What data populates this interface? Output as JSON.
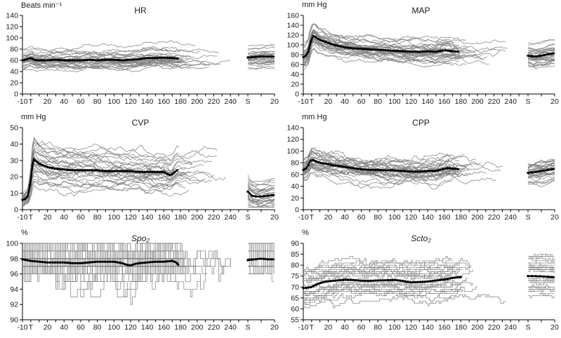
{
  "figure": {
    "background": "#ffffff",
    "colors": {
      "trace": "#7e7e7e",
      "mean": "#000000",
      "axis": "#000000",
      "text": "#1a1a1a"
    }
  },
  "chart_data": {
    "type": "line",
    "description": "Six-panel spaghetti plot of individual patient traces (grey) with bold mean line (black) over intraoperative time; axis break before recovery segment S",
    "x_axis": {
      "main_range": [
        -10,
        250
      ],
      "tick_step": 10,
      "main_labels": [
        [
          -10,
          "-10"
        ],
        [
          0,
          "T"
        ],
        [
          20,
          "20"
        ],
        [
          40,
          "40"
        ],
        [
          60,
          "60"
        ],
        [
          80,
          "80"
        ],
        [
          100,
          "100"
        ],
        [
          120,
          "120"
        ],
        [
          140,
          "140"
        ],
        [
          160,
          "160"
        ],
        [
          180,
          "180"
        ],
        [
          200,
          "200"
        ],
        [
          220,
          "220"
        ],
        [
          240,
          "240"
        ]
      ],
      "post_range": [
        0,
        20
      ],
      "post_ticks": [
        0,
        10,
        20
      ],
      "post_labels": [
        [
          0,
          "S"
        ],
        [
          20,
          "20"
        ]
      ]
    },
    "panels": [
      {
        "key": "hr",
        "title": "HR",
        "title_italic": false,
        "unit": "Beats min⁻¹",
        "ylim": [
          0,
          140
        ],
        "yticks": [
          0,
          20,
          40,
          60,
          80,
          100,
          120,
          140
        ],
        "n_traces": 32,
        "spread": 9,
        "walk": 1.2,
        "clamp": [
          36,
          112
        ],
        "quantize": false,
        "seed": 11,
        "mean": [
          [
            -10,
            60
          ],
          [
            -7,
            61
          ],
          [
            -4,
            62
          ],
          [
            0,
            64
          ],
          [
            3,
            62
          ],
          [
            6,
            60
          ],
          [
            10,
            60
          ],
          [
            20,
            60
          ],
          [
            30,
            61
          ],
          [
            40,
            60
          ],
          [
            50,
            60
          ],
          [
            60,
            60
          ],
          [
            70,
            61
          ],
          [
            80,
            60
          ],
          [
            90,
            61
          ],
          [
            100,
            61
          ],
          [
            110,
            60
          ],
          [
            120,
            61
          ],
          [
            130,
            62
          ],
          [
            140,
            64
          ],
          [
            150,
            64
          ],
          [
            160,
            65
          ],
          [
            170,
            64
          ],
          [
            178,
            63
          ]
        ],
        "post_mean": [
          [
            0,
            65
          ],
          [
            5,
            66
          ],
          [
            10,
            67
          ],
          [
            15,
            67
          ],
          [
            20,
            67
          ]
        ]
      },
      {
        "key": "map",
        "title": "MAP",
        "title_italic": false,
        "unit": "mm Hg",
        "ylim": [
          0,
          160
        ],
        "yticks": [
          0,
          20,
          40,
          60,
          80,
          100,
          120,
          140,
          160
        ],
        "n_traces": 32,
        "spread": 11,
        "walk": 1.8,
        "clamp": [
          48,
          148
        ],
        "quantize": false,
        "seed": 22,
        "mean": [
          [
            -10,
            75
          ],
          [
            -7,
            78
          ],
          [
            -4,
            86
          ],
          [
            -2,
            100
          ],
          [
            0,
            112
          ],
          [
            2,
            118
          ],
          [
            4,
            117
          ],
          [
            7,
            113
          ],
          [
            10,
            110
          ],
          [
            15,
            107
          ],
          [
            20,
            104
          ],
          [
            25,
            101
          ],
          [
            30,
            99
          ],
          [
            35,
            97
          ],
          [
            40,
            95
          ],
          [
            45,
            94
          ],
          [
            50,
            93
          ],
          [
            60,
            92
          ],
          [
            70,
            91
          ],
          [
            80,
            90
          ],
          [
            90,
            89
          ],
          [
            100,
            88
          ],
          [
            110,
            87
          ],
          [
            120,
            86
          ],
          [
            130,
            86
          ],
          [
            140,
            87
          ],
          [
            150,
            86
          ],
          [
            160,
            89
          ],
          [
            165,
            88
          ],
          [
            170,
            87
          ],
          [
            178,
            86
          ]
        ],
        "post_mean": [
          [
            0,
            78
          ],
          [
            5,
            76
          ],
          [
            10,
            78
          ],
          [
            15,
            81
          ],
          [
            20,
            83
          ]
        ]
      },
      {
        "key": "cvp",
        "title": "CVP",
        "title_italic": false,
        "unit": "mm Hg",
        "ylim": [
          0,
          50
        ],
        "yticks": [
          0,
          10,
          20,
          30,
          40,
          50
        ],
        "n_traces": 30,
        "spread": 5.5,
        "walk": 0.7,
        "clamp": [
          1.5,
          45
        ],
        "quantize": false,
        "offset_ref": 24,
        "seed": 33,
        "mean": [
          [
            -10,
            6
          ],
          [
            -7,
            6.5
          ],
          [
            -4,
            8
          ],
          [
            -2,
            12
          ],
          [
            0,
            18
          ],
          [
            2,
            27
          ],
          [
            3,
            31
          ],
          [
            5,
            30
          ],
          [
            8,
            29
          ],
          [
            10,
            28
          ],
          [
            15,
            27
          ],
          [
            20,
            26
          ],
          [
            30,
            25
          ],
          [
            40,
            24.5
          ],
          [
            50,
            24
          ],
          [
            60,
            24
          ],
          [
            70,
            24
          ],
          [
            80,
            24
          ],
          [
            90,
            23.5
          ],
          [
            100,
            23.5
          ],
          [
            110,
            23.5
          ],
          [
            120,
            23.5
          ],
          [
            130,
            23
          ],
          [
            140,
            23
          ],
          [
            150,
            23
          ],
          [
            160,
            23
          ],
          [
            165,
            21.5
          ],
          [
            168,
            21
          ],
          [
            172,
            22.5
          ],
          [
            176,
            24
          ]
        ],
        "post_mean": [
          [
            0,
            11
          ],
          [
            3,
            8.5
          ],
          [
            6,
            8
          ],
          [
            10,
            8
          ],
          [
            15,
            8.5
          ],
          [
            20,
            9
          ]
        ]
      },
      {
        "key": "cpp",
        "title": "CPP",
        "title_italic": false,
        "unit": "mm Hg",
        "ylim": [
          0,
          140
        ],
        "yticks": [
          0,
          20,
          40,
          60,
          80,
          100,
          120,
          140
        ],
        "n_traces": 32,
        "spread": 11,
        "walk": 1.9,
        "clamp": [
          28,
          126
        ],
        "quantize": false,
        "seed": 44,
        "mean": [
          [
            -10,
            68
          ],
          [
            -7,
            70
          ],
          [
            -4,
            76
          ],
          [
            -2,
            82
          ],
          [
            0,
            85
          ],
          [
            3,
            84
          ],
          [
            6,
            82
          ],
          [
            10,
            80
          ],
          [
            15,
            79
          ],
          [
            20,
            78
          ],
          [
            25,
            76
          ],
          [
            30,
            75
          ],
          [
            40,
            73
          ],
          [
            50,
            71
          ],
          [
            60,
            69
          ],
          [
            70,
            68
          ],
          [
            80,
            68
          ],
          [
            90,
            67
          ],
          [
            100,
            67
          ],
          [
            110,
            66
          ],
          [
            120,
            65
          ],
          [
            130,
            65
          ],
          [
            140,
            66
          ],
          [
            150,
            66
          ],
          [
            160,
            70
          ],
          [
            165,
            71
          ],
          [
            170,
            70
          ],
          [
            178,
            69
          ]
        ],
        "post_mean": [
          [
            0,
            63
          ],
          [
            5,
            64
          ],
          [
            10,
            66
          ],
          [
            15,
            68
          ],
          [
            20,
            70
          ]
        ]
      },
      {
        "key": "spo2",
        "title": "Spo₂",
        "title_italic": true,
        "unit": "%",
        "ylim": [
          90,
          100
        ],
        "yticks": [
          90,
          92,
          94,
          96,
          98,
          100
        ],
        "n_traces": 28,
        "spread": 1.6,
        "walk": 1,
        "clamp": [
          92,
          100
        ],
        "quantize": true,
        "seed": 55,
        "mean": [
          [
            -10,
            97.9
          ],
          [
            -5,
            97.8
          ],
          [
            0,
            97.7
          ],
          [
            10,
            97.6
          ],
          [
            20,
            97.5
          ],
          [
            30,
            97.5
          ],
          [
            40,
            97.5
          ],
          [
            50,
            97.4
          ],
          [
            60,
            97.4
          ],
          [
            70,
            97.5
          ],
          [
            80,
            97.6
          ],
          [
            90,
            97.6
          ],
          [
            100,
            97.6
          ],
          [
            110,
            97.4
          ],
          [
            115,
            97.2
          ],
          [
            120,
            97.1
          ],
          [
            125,
            97.3
          ],
          [
            130,
            97.4
          ],
          [
            140,
            97.5
          ],
          [
            150,
            97.6
          ],
          [
            160,
            97.6
          ],
          [
            170,
            97.7
          ],
          [
            175,
            97.5
          ],
          [
            178,
            97.1
          ]
        ],
        "post_mean": [
          [
            0,
            97.8
          ],
          [
            5,
            97.9
          ],
          [
            10,
            98
          ],
          [
            15,
            97.9
          ],
          [
            20,
            97.9
          ]
        ]
      },
      {
        "key": "scto2",
        "title": "Scto₂",
        "title_italic": true,
        "unit": "%",
        "ylim": [
          55,
          90
        ],
        "yticks": [
          55,
          60,
          65,
          70,
          75,
          80,
          85,
          90
        ],
        "n_traces": 26,
        "spread": 4.5,
        "walk": 1,
        "clamp": [
          60.5,
          86
        ],
        "quantize": true,
        "seed": 66,
        "mean": [
          [
            -10,
            69.5
          ],
          [
            -5,
            69.7
          ],
          [
            0,
            70
          ],
          [
            5,
            71
          ],
          [
            10,
            71.8
          ],
          [
            15,
            72.3
          ],
          [
            20,
            72.6
          ],
          [
            30,
            73
          ],
          [
            40,
            73.3
          ],
          [
            50,
            73.2
          ],
          [
            60,
            72.9
          ],
          [
            70,
            72.8
          ],
          [
            80,
            73
          ],
          [
            90,
            73.1
          ],
          [
            100,
            73.2
          ],
          [
            110,
            72.8
          ],
          [
            115,
            72.3
          ],
          [
            120,
            72.1
          ],
          [
            130,
            72.3
          ],
          [
            140,
            72.5
          ],
          [
            150,
            73
          ],
          [
            160,
            73.4
          ],
          [
            165,
            73.8
          ],
          [
            170,
            74.2
          ],
          [
            181,
            74.6
          ]
        ],
        "post_mean": [
          [
            0,
            75
          ],
          [
            5,
            75
          ],
          [
            10,
            74.9
          ],
          [
            15,
            74.7
          ],
          [
            20,
            74.5
          ]
        ]
      }
    ]
  }
}
